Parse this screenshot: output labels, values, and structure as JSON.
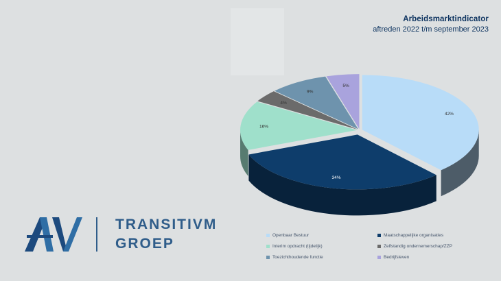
{
  "header": {
    "title": "Arbeidsmarktindicator",
    "subtitle": "aftreden 2022 t/m september 2023"
  },
  "logo": {
    "line1": "TRANSITIVM",
    "line2": "GROEP",
    "mark_color": "#1c4a7e"
  },
  "chart_data": {
    "type": "pie",
    "title": "",
    "style": "3d-exploded",
    "legend_position": "bottom",
    "labels": [
      "Openbaar Bestuur",
      "Maatschappelijke organisaties",
      "Interim opdracht (tijdelijk)",
      "Zelfstandig ondernemerschap/ZZP",
      "Toezichthoudende functie",
      "Bedrijfsleven"
    ],
    "values": [
      42,
      34,
      16,
      4,
      9,
      5
    ],
    "data_labels": [
      "42%",
      "34%",
      "16%",
      "4%",
      "9%",
      "5%"
    ],
    "colors": [
      "#b8dcf8",
      "#0e3d6b",
      "#9fe0cb",
      "#6b6b6b",
      "#6e93ad",
      "#a9a3dd"
    ]
  }
}
